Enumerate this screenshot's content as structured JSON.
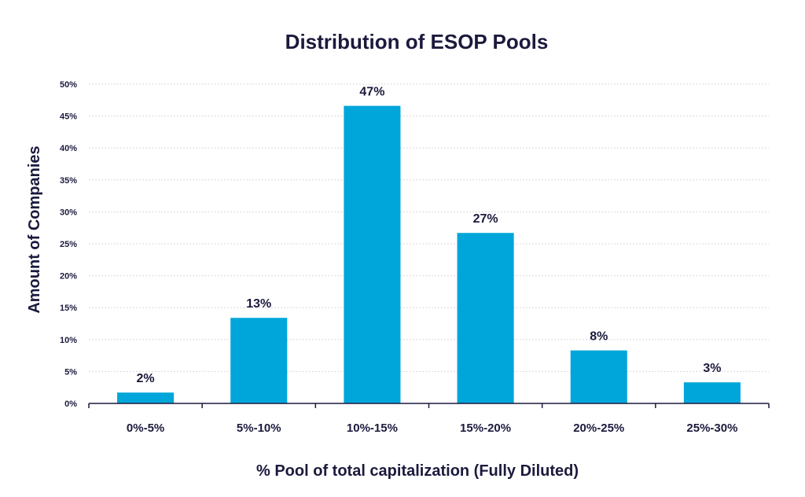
{
  "chart_data": {
    "type": "bar",
    "title": "Distribution of ESOP Pools",
    "xlabel": "% Pool of total capitalization (Fully Diluted)",
    "ylabel": "Amount of Companies",
    "categories": [
      "0%-5%",
      "5%-10%",
      "10%-15%",
      "15%-20%",
      "20%-25%",
      "25%-30%"
    ],
    "values": [
      1.7,
      13.4,
      46.6,
      26.7,
      8.3,
      3.3
    ],
    "data_labels": [
      "2%",
      "13%",
      "47%",
      "27%",
      "8%",
      "3%"
    ],
    "ylim": [
      0,
      50
    ],
    "yticks": [
      "0%",
      "5%",
      "10%",
      "15%",
      "20%",
      "25%",
      "30%",
      "35%",
      "40%",
      "45%",
      "50%"
    ],
    "grid": true,
    "legend": "none",
    "bar_color": "#00a6d9",
    "text_color": "#1b1a3d"
  }
}
